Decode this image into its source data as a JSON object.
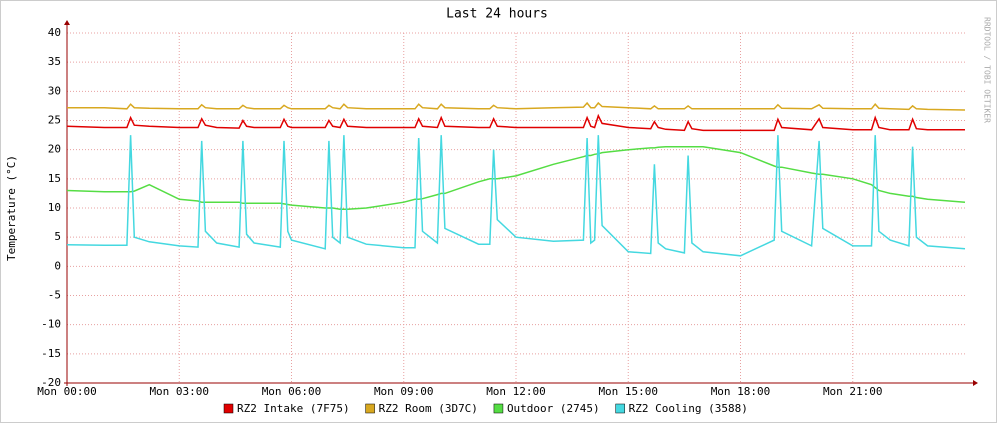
{
  "chart_data": {
    "type": "line",
    "title": "Last 24 hours",
    "y_label": "Temperature (°C)",
    "watermark": "RRDTOOL / TOBI OETIKER",
    "x": [
      0,
      1,
      1.6,
      1.7,
      1.8,
      2.2,
      3,
      3.5,
      3.6,
      3.7,
      4,
      4.6,
      4.7,
      4.8,
      5,
      5.7,
      5.8,
      5.9,
      6,
      6.9,
      7.0,
      7.1,
      7.3,
      7.4,
      7.5,
      8,
      9,
      9.3,
      9.4,
      9.5,
      9.9,
      10.0,
      10.1,
      11,
      11.3,
      11.4,
      11.5,
      12,
      13,
      13.8,
      13.9,
      14.0,
      14.1,
      14.2,
      14.3,
      15,
      15.6,
      15.7,
      15.8,
      16,
      16.5,
      16.6,
      16.7,
      17,
      18,
      18.9,
      19.0,
      19.1,
      19.9,
      20.1,
      20.2,
      21,
      21.5,
      21.6,
      21.7,
      22,
      22.5,
      22.6,
      22.7,
      23,
      24
    ],
    "series": [
      {
        "name": "RZ2 Intake (7F75)",
        "color": "#e00000",
        "values": [
          24,
          23.8,
          23.8,
          25.5,
          24.2,
          24,
          23.8,
          23.8,
          25.3,
          24.2,
          23.8,
          23.7,
          25,
          24,
          23.8,
          23.8,
          25.2,
          24,
          23.8,
          23.8,
          25,
          24,
          23.8,
          25.2,
          24,
          23.8,
          23.8,
          23.8,
          25.3,
          24,
          23.8,
          25.5,
          24,
          23.8,
          23.8,
          25.3,
          24,
          23.8,
          23.8,
          23.8,
          25.5,
          24,
          23.8,
          25.8,
          24.5,
          23.8,
          23.6,
          24.8,
          23.8,
          23.5,
          23.3,
          24.8,
          23.6,
          23.3,
          23.3,
          23.3,
          25.2,
          23.8,
          23.4,
          25.3,
          23.8,
          23.4,
          23.4,
          25.5,
          23.8,
          23.4,
          23.4,
          25.2,
          23.6,
          23.4,
          23.4
        ]
      },
      {
        "name": "RZ2 Room (3D7C)",
        "color": "#d8a820",
        "values": [
          27.2,
          27.2,
          27,
          27.8,
          27.2,
          27.1,
          27,
          27,
          27.7,
          27.2,
          27,
          27,
          27.6,
          27.2,
          27,
          27,
          27.6,
          27.2,
          27,
          27,
          27.6,
          27.2,
          27,
          27.8,
          27.2,
          27,
          27,
          27,
          27.8,
          27.2,
          27,
          27.8,
          27.2,
          27,
          27,
          27.6,
          27.2,
          27,
          27.2,
          27.3,
          28,
          27.2,
          27.2,
          28,
          27.4,
          27.2,
          27,
          27.5,
          27,
          27,
          27,
          27.5,
          27,
          27,
          27,
          27,
          27.7,
          27.1,
          27,
          27.7,
          27.1,
          27,
          27,
          27.8,
          27.1,
          27,
          26.9,
          27.5,
          27,
          26.9,
          26.8
        ]
      },
      {
        "name": "Outdoor (2745)",
        "color": "#55dd44",
        "values": [
          13,
          12.8,
          12.8,
          12.8,
          12.9,
          14,
          11.5,
          11.2,
          11,
          11,
          11,
          11,
          10.8,
          10.8,
          10.8,
          10.8,
          10.7,
          10.6,
          10.5,
          10,
          10,
          10,
          9.8,
          9.8,
          9.8,
          10,
          11,
          11.5,
          11.5,
          11.6,
          12.3,
          12.5,
          12.5,
          14.5,
          15,
          15,
          15,
          15.5,
          17.5,
          18.8,
          19,
          19,
          19.2,
          19.3,
          19.5,
          20,
          20.3,
          20.3,
          20.4,
          20.5,
          20.5,
          20.5,
          20.5,
          20.5,
          19.5,
          17.2,
          17,
          17,
          16,
          15.8,
          15.8,
          15,
          14,
          13.5,
          13,
          12.5,
          12,
          12,
          11.8,
          11.5,
          11
        ]
      },
      {
        "name": "RZ2 Cooling (3588)",
        "color": "#44d8e0",
        "values": [
          3.7,
          3.6,
          3.6,
          22.5,
          5,
          4.2,
          3.5,
          3.3,
          21.5,
          6,
          4,
          3.3,
          21.5,
          5.5,
          4,
          3.3,
          21.5,
          6,
          4.5,
          3,
          21.5,
          5,
          4,
          22.5,
          5,
          3.8,
          3.2,
          3.2,
          22,
          6,
          4,
          22.5,
          6.5,
          3.8,
          3.8,
          20,
          8,
          5,
          4.3,
          4.5,
          22,
          4,
          4.5,
          22.5,
          7,
          2.5,
          2.2,
          17.5,
          4,
          3,
          2.3,
          19,
          4,
          2.5,
          1.8,
          4.5,
          22.5,
          6,
          3.5,
          21.5,
          6.5,
          3.5,
          3.5,
          22.5,
          6,
          4.5,
          3.5,
          20.5,
          5,
          3.5,
          3
        ]
      }
    ],
    "xlim": [
      0,
      24
    ],
    "xticks": [
      {
        "value": 0,
        "label": "Mon 00:00"
      },
      {
        "value": 3,
        "label": "Mon 03:00"
      },
      {
        "value": 6,
        "label": "Mon 06:00"
      },
      {
        "value": 9,
        "label": "Mon 09:00"
      },
      {
        "value": 12,
        "label": "Mon 12:00"
      },
      {
        "value": 15,
        "label": "Mon 15:00"
      },
      {
        "value": 18,
        "label": "Mon 18:00"
      },
      {
        "value": 21,
        "label": "Mon 21:00"
      }
    ],
    "ylim": [
      -20,
      40
    ],
    "yticks": [
      -20,
      -15,
      -10,
      -5,
      0,
      5,
      10,
      15,
      20,
      25,
      30,
      35,
      40
    ],
    "grid": true
  }
}
